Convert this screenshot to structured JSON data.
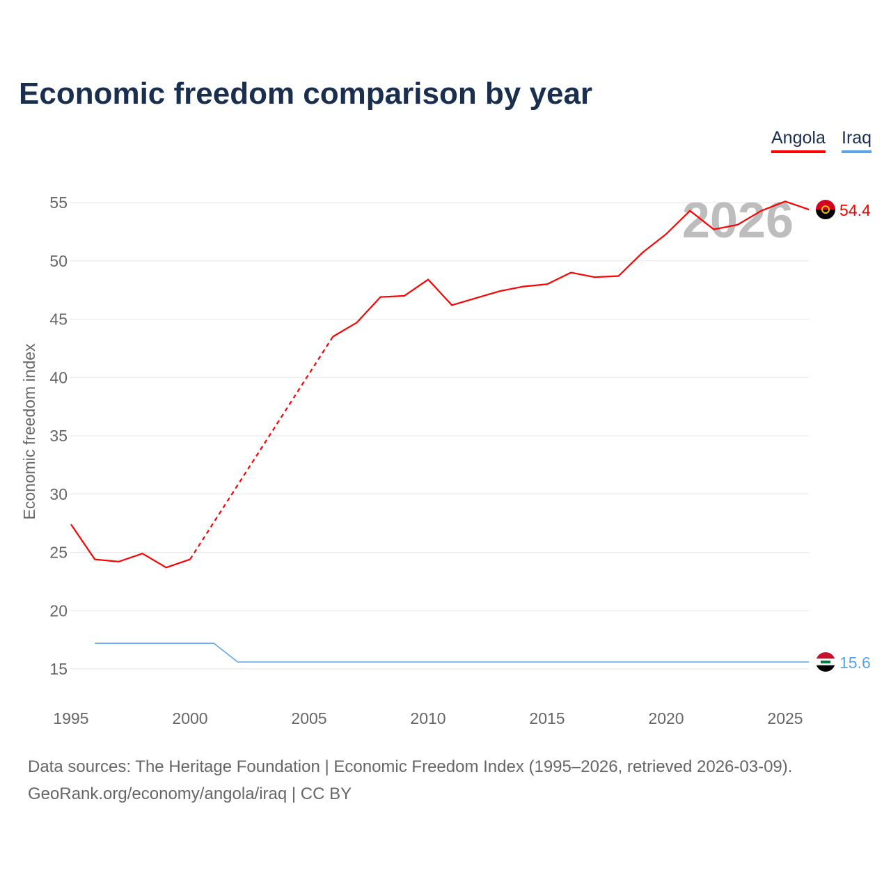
{
  "chart_data": {
    "type": "line",
    "title": "Economic freedom comparison by year",
    "xlabel": "",
    "ylabel": "Economic freedom index",
    "xlim": [
      1995,
      2026
    ],
    "ylim": [
      15,
      55
    ],
    "x_ticks": [
      "1995",
      "2000",
      "2005",
      "2010",
      "2015",
      "2020",
      "2025"
    ],
    "y_ticks": [
      "15",
      "20",
      "25",
      "30",
      "35",
      "40",
      "45",
      "50",
      "55"
    ],
    "watermark_year": "2026",
    "legend_position": "top-right",
    "series": [
      {
        "name": "Angola",
        "color": "#ff0000",
        "end_label": "54.4",
        "x": [
          1995,
          1996,
          1997,
          1998,
          1999,
          2000,
          2006,
          2007,
          2008,
          2009,
          2010,
          2011,
          2012,
          2013,
          2014,
          2015,
          2016,
          2017,
          2018,
          2019,
          2020,
          2021,
          2022,
          2023,
          2024,
          2025,
          2026
        ],
        "values": [
          27.4,
          24.4,
          24.2,
          24.9,
          23.7,
          24.4,
          43.5,
          44.7,
          46.9,
          47.0,
          48.4,
          46.2,
          46.8,
          47.4,
          47.8,
          48.0,
          49.0,
          48.6,
          48.7,
          50.7,
          52.3,
          54.3,
          52.7,
          53.1,
          54.3,
          55.1,
          54.4
        ],
        "dashed_gap": [
          2000,
          2006
        ]
      },
      {
        "name": "Iraq",
        "color": "#5ba3e8",
        "end_label": "15.6",
        "x": [
          1996,
          1997,
          1998,
          1999,
          2000,
          2001,
          2002,
          2003,
          2026
        ],
        "values": [
          17.2,
          17.2,
          17.2,
          17.2,
          17.2,
          17.2,
          15.6,
          15.6,
          15.6
        ]
      }
    ]
  },
  "footer": {
    "line1": "Data sources: The Heritage Foundation | Economic Freedom Index (1995–2026, retrieved 2026-03-09).",
    "line2": "GeoRank.org/economy/angola/iraq | CC BY"
  }
}
